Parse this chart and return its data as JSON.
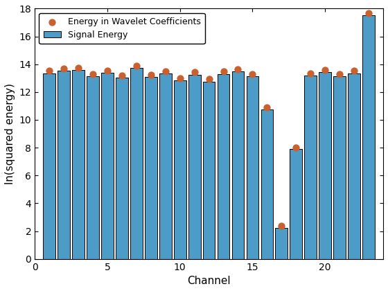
{
  "channels": [
    1,
    2,
    3,
    4,
    5,
    6,
    7,
    8,
    9,
    10,
    11,
    12,
    13,
    14,
    15,
    16,
    17,
    18,
    19,
    20,
    21,
    22,
    23
  ],
  "bar_values": [
    13.35,
    13.55,
    13.6,
    13.15,
    13.4,
    13.05,
    13.75,
    13.1,
    13.35,
    12.85,
    13.25,
    12.75,
    13.3,
    13.5,
    13.15,
    10.75,
    2.2,
    7.9,
    13.2,
    13.45,
    13.15,
    13.35,
    17.5
  ],
  "scatter_values": [
    13.55,
    13.7,
    13.75,
    13.3,
    13.55,
    13.2,
    13.9,
    13.25,
    13.5,
    13.0,
    13.45,
    12.95,
    13.5,
    13.65,
    13.3,
    10.9,
    2.35,
    8.0,
    13.35,
    13.6,
    13.3,
    13.55,
    17.65
  ],
  "bar_color": "#4D9CC7",
  "bar_edge_color": "#000000",
  "scatter_color": "#C96030",
  "bar_width": 0.85,
  "xlabel": "Channel",
  "ylabel": "ln(squared energy)",
  "ylim": [
    0,
    18
  ],
  "yticks": [
    0,
    2,
    4,
    6,
    8,
    10,
    12,
    14,
    16,
    18
  ],
  "xlim": [
    0,
    24
  ],
  "xticks": [
    0,
    5,
    10,
    15,
    20
  ],
  "legend_bar_label": "Signal Energy",
  "legend_scatter_label": "Energy in Wavelet Coefficients",
  "scatter_size": 55,
  "scatter_zorder": 5,
  "bg_color": "#ffffff",
  "font_family": "DejaVu Sans",
  "tick_labelsize": 10,
  "axis_labelsize": 11
}
